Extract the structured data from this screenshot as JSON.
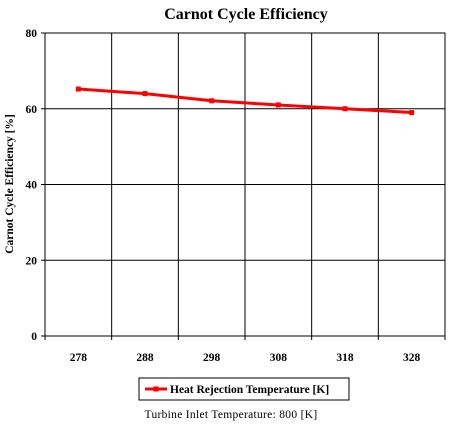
{
  "chart_data": {
    "type": "line",
    "title": "Carnot Cycle Efficiency",
    "ylabel": "Carnot Cycle Efficiency [%]",
    "xlabel": "",
    "x_tick_labels": [
      "278",
      "288",
      "298",
      "308",
      "318",
      "328"
    ],
    "y_tick_labels": [
      "0",
      "20",
      "40",
      "60",
      "80"
    ],
    "ylim": [
      0,
      80
    ],
    "grid": true,
    "legend_position": "bottom",
    "series": [
      {
        "name": "Heat Rejection Temperature [K]",
        "color": "#ff0000",
        "x": [
          278,
          288,
          298,
          308,
          318,
          328
        ],
        "y": [
          65.2,
          64.0,
          62.1,
          61.0,
          60.0,
          59.0
        ]
      }
    ],
    "note": "Turbine  Inlet Temperature:  800 [K]"
  }
}
